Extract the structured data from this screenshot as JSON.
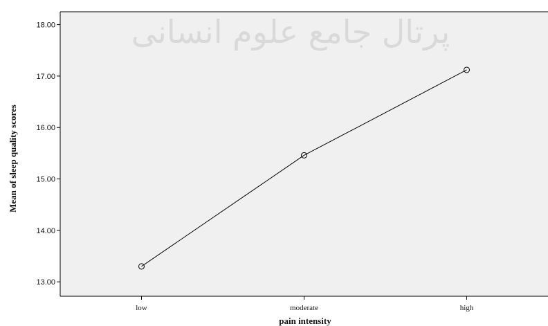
{
  "chart_data": {
    "type": "line",
    "title": "",
    "xlabel": "pain intensity",
    "ylabel": "Mean of sleep quality scores",
    "categories": [
      "low",
      "moderate",
      "high"
    ],
    "series": [
      {
        "values": [
          13.3,
          15.46,
          17.12
        ]
      }
    ],
    "ylim": [
      12.72,
      18.25
    ],
    "yticks": [
      13.0,
      14.0,
      15.0,
      16.0,
      17.0,
      18.0
    ],
    "ytick_labels": [
      "13.00",
      "14.00",
      "15.00",
      "16.00",
      "17.00",
      "18.00"
    ],
    "grid": false,
    "markers": "open-circle",
    "colors": {
      "plot_bg": "#f0f0f0",
      "line": "#000000",
      "text": "#111111"
    }
  },
  "watermark": {
    "text": "پرتال جامع علوم انسانی"
  }
}
